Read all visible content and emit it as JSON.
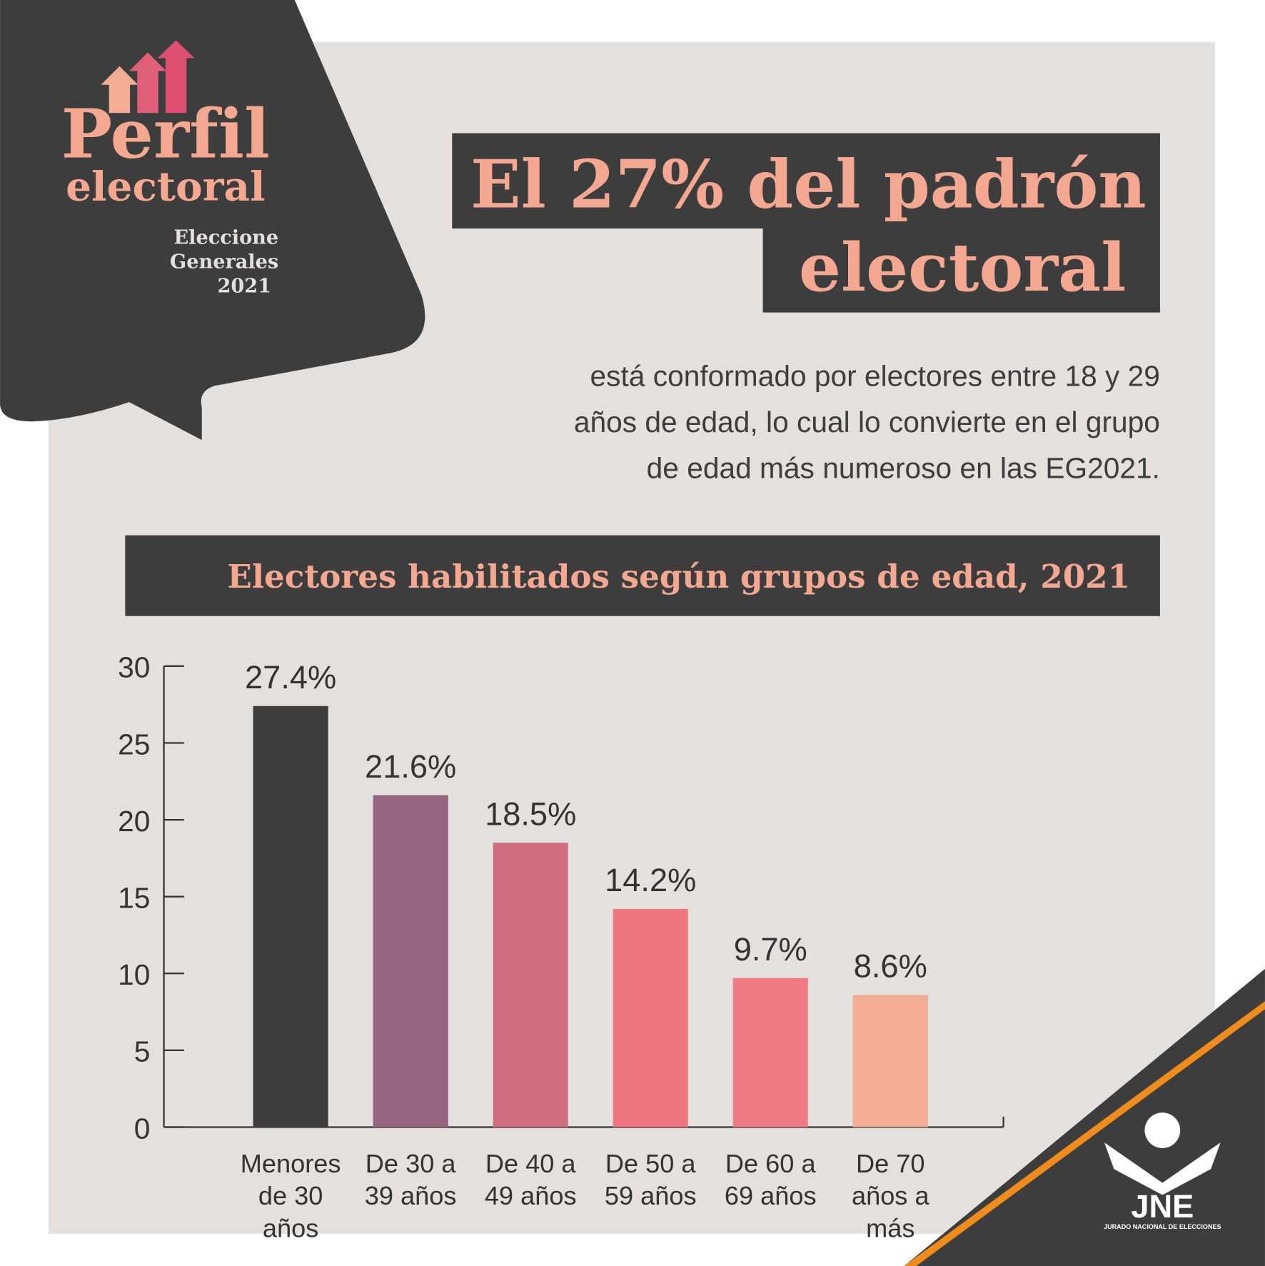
{
  "brand": {
    "title": "Perfil",
    "subtitle": "electoral",
    "event": [
      "Eleccione",
      "Generales",
      "2021"
    ]
  },
  "headline": [
    "El 27% del padrón",
    "electoral"
  ],
  "paragraph": [
    "está conformado por electores entre 18 y 29",
    "años de edad, lo cual lo convierte en el grupo",
    "de edad más numeroso en las EG2021."
  ],
  "chart_data": {
    "type": "bar",
    "title": "Electores habilitados según grupos de edad, 2021",
    "categories": [
      "Menores de 30 años",
      "De 30 a 39 años",
      "De 40 a 49 años",
      "De 50 a 59 años",
      "De 60 a 69 años",
      "De 70 años a más"
    ],
    "values": [
      27.4,
      21.6,
      18.5,
      14.2,
      9.7,
      8.6
    ],
    "value_labels": [
      "27.4%",
      "21.6%",
      "18.5%",
      "14.2%",
      "9.7%",
      "8.6%"
    ],
    "colors": [
      "#3d3d3d",
      "#96657f",
      "#d06d80",
      "#ee7680",
      "#f07a84",
      "#f4ad95"
    ],
    "ylim": [
      0,
      30
    ],
    "yticks": [
      0,
      5,
      10,
      15,
      20,
      25,
      30
    ]
  },
  "logo": {
    "name": "JNE",
    "full_name": "JURADO NACIONAL DE ELECCIONES"
  }
}
